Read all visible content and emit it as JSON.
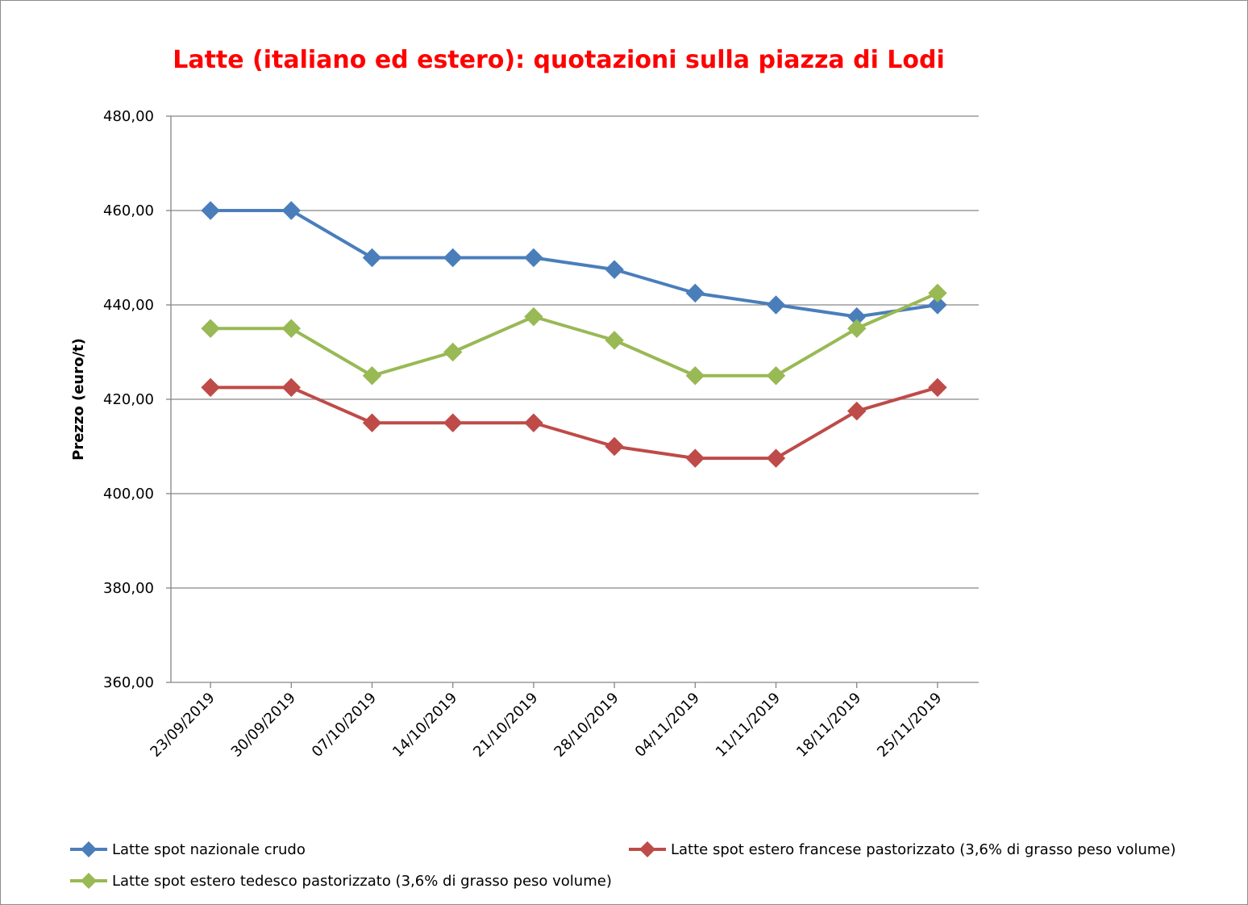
{
  "chart_data": {
    "type": "line",
    "title": "Latte (italiano ed estero): quotazioni sulla piazza di Lodi",
    "xlabel": "",
    "ylabel": "Prezzo (euro/t)",
    "ylim": [
      360,
      480
    ],
    "yticks": [
      "360,00",
      "380,00",
      "400,00",
      "420,00",
      "440,00",
      "460,00",
      "480,00"
    ],
    "categories": [
      "23/09/2019",
      "30/09/2019",
      "07/10/2019",
      "14/10/2019",
      "21/10/2019",
      "28/10/2019",
      "04/11/2019",
      "11/11/2019",
      "18/11/2019",
      "25/11/2019"
    ],
    "grid": true,
    "legend_position": "bottom",
    "series": [
      {
        "name": "Latte spot nazionale crudo",
        "color": "#4a7ebb",
        "values": [
          460,
          460,
          450,
          450,
          450,
          447.5,
          442.5,
          440,
          437.5,
          440
        ]
      },
      {
        "name": "Latte spot estero francese pastorizzato (3,6% di grasso peso volume)",
        "color": "#be4b48",
        "values": [
          422.5,
          422.5,
          415,
          415,
          415,
          410,
          407.5,
          407.5,
          417.5,
          422.5
        ]
      },
      {
        "name": "Latte spot estero tedesco pastorizzato (3,6% di grasso peso volume)",
        "color": "#98b954",
        "values": [
          435,
          435,
          425,
          430,
          437.5,
          432.5,
          425,
          425,
          435,
          442.5
        ]
      }
    ]
  }
}
